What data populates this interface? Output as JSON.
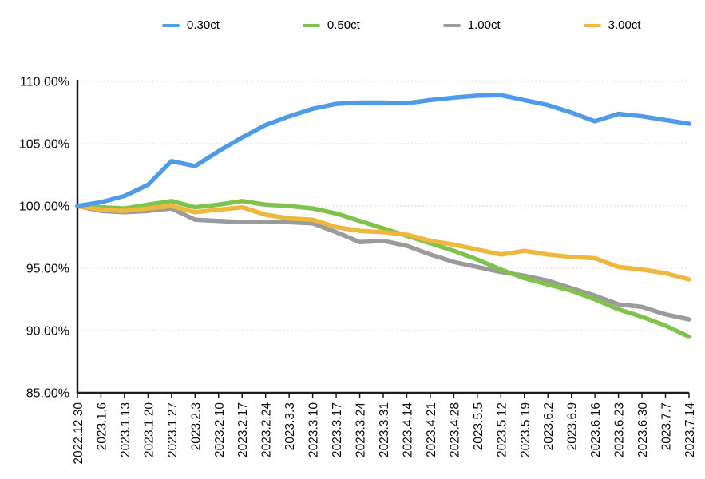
{
  "chart_data": {
    "type": "line",
    "title": "",
    "xlabel": "",
    "ylabel": "",
    "ylim": [
      85,
      110
    ],
    "y_ticks": [
      "110.00%",
      "105.00%",
      "100.00%",
      "95.00%",
      "90.00%",
      "85.00%"
    ],
    "grid": "horizontal-dotted",
    "legend_position": "top",
    "categories": [
      "2022.12.30",
      "2023.1.6",
      "2023.1.13",
      "2023.1.20",
      "2023.1.27",
      "2023.2.3",
      "2023.2.10",
      "2023.2.17",
      "2023.2.24",
      "2023.3.3",
      "2023.3.10",
      "2023.3.17",
      "2023.3.24",
      "2023.3.31",
      "2023.4.14",
      "2023.4.21",
      "2023.4.28",
      "2023.5.5",
      "2023.5.12",
      "2023.5.19",
      "2023.6.2",
      "2023.6.9",
      "2023.6.16",
      "2023.6.23",
      "2023.6.30",
      "2023.7.7",
      "2023.7.14"
    ],
    "series": [
      {
        "name": "0.30ct",
        "color": "#4d9be9",
        "values": [
          100.0,
          100.3,
          100.8,
          101.7,
          103.6,
          103.2,
          104.4,
          105.5,
          106.5,
          107.2,
          107.8,
          108.2,
          108.3,
          108.3,
          108.25,
          108.5,
          108.7,
          108.85,
          108.9,
          108.5,
          108.1,
          107.5,
          106.8,
          107.4,
          107.2,
          106.9,
          106.6
        ]
      },
      {
        "name": "0.50ct",
        "color": "#7fc34c",
        "values": [
          100.0,
          99.9,
          99.8,
          100.1,
          100.4,
          99.9,
          100.1,
          100.4,
          100.1,
          100.0,
          99.8,
          99.4,
          98.8,
          98.2,
          97.6,
          97.0,
          96.4,
          95.7,
          94.9,
          94.2,
          93.7,
          93.2,
          92.5,
          91.7,
          91.1,
          90.4,
          89.5
        ]
      },
      {
        "name": "1.00ct",
        "color": "#9b9b9b",
        "values": [
          100.0,
          99.6,
          99.5,
          99.6,
          99.8,
          98.9,
          98.8,
          98.7,
          98.7,
          98.7,
          98.6,
          97.9,
          97.1,
          97.2,
          96.8,
          96.1,
          95.5,
          95.1,
          94.7,
          94.4,
          94.0,
          93.4,
          92.8,
          92.1,
          91.9,
          91.3,
          90.9
        ]
      },
      {
        "name": "3.00ct",
        "color": "#eeb73e",
        "values": [
          100.0,
          99.7,
          99.6,
          99.8,
          100.0,
          99.5,
          99.7,
          99.9,
          99.3,
          99.0,
          98.9,
          98.3,
          98.0,
          97.9,
          97.7,
          97.2,
          96.9,
          96.5,
          96.1,
          96.4,
          96.1,
          95.9,
          95.8,
          95.1,
          94.9,
          94.6,
          94.1
        ]
      }
    ]
  }
}
